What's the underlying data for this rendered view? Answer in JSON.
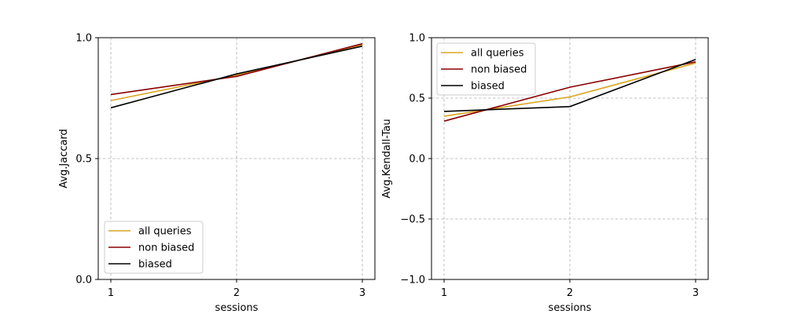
{
  "colors": {
    "all_queries": "#DAA520",
    "non_biased": "#8B0000",
    "biased": "#000000"
  },
  "chart_data": [
    {
      "type": "line",
      "xlabel": "sessions",
      "ylabel": "Avg.Jaccard",
      "x": [
        1,
        2,
        3
      ],
      "xticks": [
        "1",
        "2",
        "3"
      ],
      "ylim": [
        0.0,
        1.0
      ],
      "yticks": [
        "0.0",
        "0.5",
        "1.0"
      ],
      "ytick_values": [
        0.0,
        0.5,
        1.0
      ],
      "grid": true,
      "legend_position": "lower-left",
      "series": [
        {
          "name": "all queries",
          "color_key": "all_queries",
          "values": [
            0.74,
            0.845,
            0.97
          ]
        },
        {
          "name": "non biased",
          "color_key": "non_biased",
          "values": [
            0.765,
            0.84,
            0.975
          ]
        },
        {
          "name": "biased",
          "color_key": "biased",
          "values": [
            0.71,
            0.85,
            0.965
          ]
        }
      ]
    },
    {
      "type": "line",
      "xlabel": "sessions",
      "ylabel": "Avg.Kendall-Tau",
      "x": [
        1,
        2,
        3
      ],
      "xticks": [
        "1",
        "2",
        "3"
      ],
      "ylim": [
        -1.0,
        1.0
      ],
      "yticks": [
        "−1.0",
        "−0.5",
        "0.0",
        "0.5",
        "1.0"
      ],
      "ytick_values": [
        -1.0,
        -0.5,
        0.0,
        0.5,
        1.0
      ],
      "grid": true,
      "legend_position": "top-left",
      "series": [
        {
          "name": "all queries",
          "color_key": "all_queries",
          "values": [
            0.35,
            0.51,
            0.79
          ]
        },
        {
          "name": "non biased",
          "color_key": "non_biased",
          "values": [
            0.31,
            0.59,
            0.8
          ]
        },
        {
          "name": "biased",
          "color_key": "biased",
          "values": [
            0.39,
            0.43,
            0.82
          ]
        }
      ]
    }
  ]
}
